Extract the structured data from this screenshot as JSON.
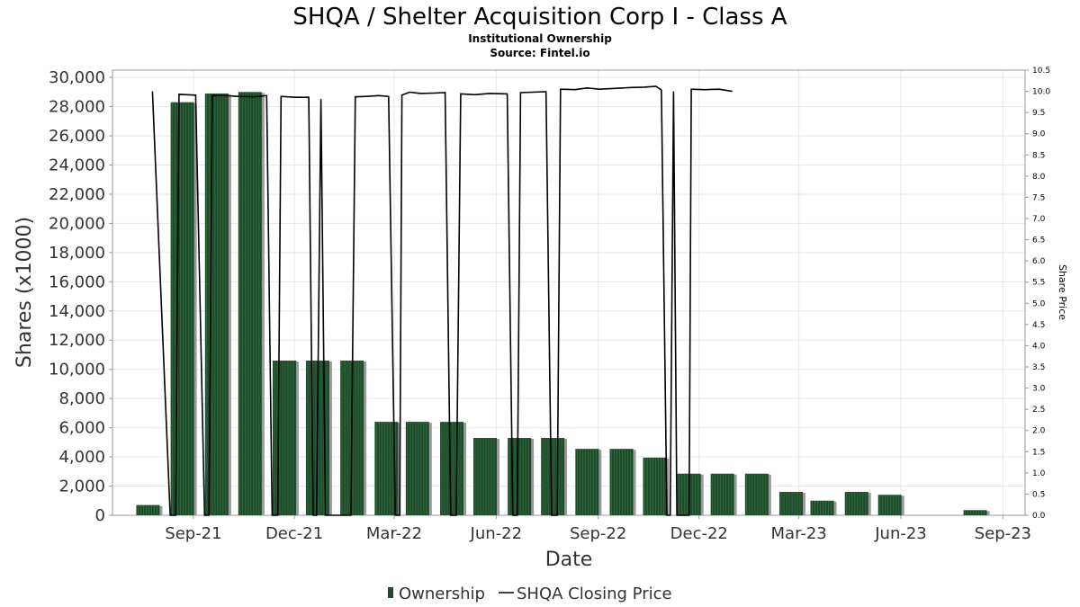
{
  "title": "SHQA / Shelter Acquisition Corp I - Class A",
  "subtitle": "Institutional Ownership",
  "source": "Source: Fintel.io",
  "colors": {
    "bar": "#1f4a2b",
    "bar_stripe": "#2e6b3c",
    "bar_shadow": "#9a9a9a",
    "line": "#000000",
    "grid": "#e6e6e6"
  },
  "chart_data": {
    "type": "bar",
    "title": "SHQA / Shelter Acquisition Corp I - Class A",
    "xlabel": "Date",
    "ylabel": "Shares (x1000)",
    "y2label": "Share Price",
    "ylim": [
      0,
      30500
    ],
    "y2lim": [
      0,
      10.5
    ],
    "xlim": [
      "2021-06-19",
      "2023-09-20"
    ],
    "grid": true,
    "legend_position": "bottom",
    "x_ticks": [
      {
        "date": "2021-08-31",
        "label": "Sep-21"
      },
      {
        "date": "2021-11-30",
        "label": "Dec-21"
      },
      {
        "date": "2022-02-28",
        "label": "Mar-22"
      },
      {
        "date": "2022-05-31",
        "label": "Jun-22"
      },
      {
        "date": "2022-08-31",
        "label": "Sep-22"
      },
      {
        "date": "2022-11-30",
        "label": "Dec-22"
      },
      {
        "date": "2023-02-28",
        "label": "Mar-23"
      },
      {
        "date": "2023-05-31",
        "label": "Jun-23"
      },
      {
        "date": "2023-08-31",
        "label": "Sep-23"
      }
    ],
    "y_ticks": [
      {
        "value": 0,
        "label": "0"
      },
      {
        "value": 2000,
        "label": "2,000"
      },
      {
        "value": 4000,
        "label": "4,000"
      },
      {
        "value": 6000,
        "label": "6,000"
      },
      {
        "value": 8000,
        "label": "8,000"
      },
      {
        "value": 10000,
        "label": "10,000"
      },
      {
        "value": 12000,
        "label": "12,000"
      },
      {
        "value": 14000,
        "label": "14,000"
      },
      {
        "value": 16000,
        "label": "16,000"
      },
      {
        "value": 18000,
        "label": "18,000"
      },
      {
        "value": 20000,
        "label": "20,000"
      },
      {
        "value": 22000,
        "label": "22,000"
      },
      {
        "value": 24000,
        "label": "24,000"
      },
      {
        "value": 26000,
        "label": "26,000"
      },
      {
        "value": 28000,
        "label": "28,000"
      },
      {
        "value": 30000,
        "label": "30,000"
      }
    ],
    "y2_ticks": [
      {
        "value": 0,
        "label": "0.0"
      },
      {
        "value": 0.5,
        "label": "0.5"
      },
      {
        "value": 1,
        "label": "1.0"
      },
      {
        "value": 1.5,
        "label": "1.5"
      },
      {
        "value": 2,
        "label": "2.0"
      },
      {
        "value": 2.5,
        "label": "2.5"
      },
      {
        "value": 3,
        "label": "3.0"
      },
      {
        "value": 3.5,
        "label": "3.5"
      },
      {
        "value": 4,
        "label": "4.0"
      },
      {
        "value": 4.5,
        "label": "4.5"
      },
      {
        "value": 5,
        "label": "5.0"
      },
      {
        "value": 5.5,
        "label": "5.5"
      },
      {
        "value": 6,
        "label": "6.0"
      },
      {
        "value": 6.5,
        "label": "6.5"
      },
      {
        "value": 7,
        "label": "7.0"
      },
      {
        "value": 7.5,
        "label": "7.5"
      },
      {
        "value": 8,
        "label": "8.0"
      },
      {
        "value": 8.5,
        "label": "8.5"
      },
      {
        "value": 9,
        "label": "9.0"
      },
      {
        "value": 9.5,
        "label": "9.5"
      },
      {
        "value": 10,
        "label": "10.0"
      },
      {
        "value": 10.5,
        "label": "10.5"
      }
    ],
    "series": [
      {
        "name": "Ownership",
        "type": "bar",
        "axis": "left",
        "points": [
          {
            "date": "2021-07-21",
            "value": 700
          },
          {
            "date": "2021-08-21",
            "value": 28300
          },
          {
            "date": "2021-09-21",
            "value": 28900
          },
          {
            "date": "2021-10-21",
            "value": 29000
          },
          {
            "date": "2021-11-21",
            "value": 10600
          },
          {
            "date": "2021-12-21",
            "value": 10600
          },
          {
            "date": "2022-01-21",
            "value": 10600
          },
          {
            "date": "2022-02-21",
            "value": 6400
          },
          {
            "date": "2022-03-21",
            "value": 6400
          },
          {
            "date": "2022-04-21",
            "value": 6400
          },
          {
            "date": "2022-05-21",
            "value": 5300
          },
          {
            "date": "2022-06-21",
            "value": 5300
          },
          {
            "date": "2022-07-21",
            "value": 5300
          },
          {
            "date": "2022-08-21",
            "value": 4550
          },
          {
            "date": "2022-09-21",
            "value": 4550
          },
          {
            "date": "2022-10-21",
            "value": 3950
          },
          {
            "date": "2022-11-21",
            "value": 2850
          },
          {
            "date": "2022-12-21",
            "value": 2850
          },
          {
            "date": "2023-01-21",
            "value": 2850
          },
          {
            "date": "2023-02-21",
            "value": 1600
          },
          {
            "date": "2023-03-21",
            "value": 1000
          },
          {
            "date": "2023-04-21",
            "value": 1600
          },
          {
            "date": "2023-05-21",
            "value": 1400
          },
          {
            "date": "2023-08-06",
            "value": 350
          }
        ]
      },
      {
        "name": "SHQA Closing Price",
        "type": "line",
        "axis": "right",
        "points": [
          {
            "date": "2021-07-25",
            "value": 10.0
          },
          {
            "date": "2021-08-10",
            "value": 0.0
          },
          {
            "date": "2021-08-15",
            "value": 0.0
          },
          {
            "date": "2021-08-18",
            "value": 9.93
          },
          {
            "date": "2021-08-25",
            "value": 9.92
          },
          {
            "date": "2021-09-02",
            "value": 9.91
          },
          {
            "date": "2021-09-10",
            "value": 0.0
          },
          {
            "date": "2021-09-14",
            "value": 0.0
          },
          {
            "date": "2021-09-17",
            "value": 9.9
          },
          {
            "date": "2021-09-28",
            "value": 9.9
          },
          {
            "date": "2021-10-10",
            "value": 9.88
          },
          {
            "date": "2021-10-25",
            "value": 9.87
          },
          {
            "date": "2021-11-05",
            "value": 9.9
          },
          {
            "date": "2021-11-10",
            "value": 0.0
          },
          {
            "date": "2021-11-15",
            "value": 0.0
          },
          {
            "date": "2021-11-18",
            "value": 9.88
          },
          {
            "date": "2021-12-01",
            "value": 9.86
          },
          {
            "date": "2021-12-13",
            "value": 9.86
          },
          {
            "date": "2021-12-17",
            "value": 0.0
          },
          {
            "date": "2021-12-20",
            "value": 0.0
          },
          {
            "date": "2021-12-24",
            "value": 9.82
          },
          {
            "date": "2021-12-28",
            "value": 0.0
          },
          {
            "date": "2022-01-20",
            "value": 0.0
          },
          {
            "date": "2022-01-24",
            "value": 9.87
          },
          {
            "date": "2022-02-03",
            "value": 9.88
          },
          {
            "date": "2022-02-14",
            "value": 9.9
          },
          {
            "date": "2022-02-23",
            "value": 9.88
          },
          {
            "date": "2022-03-01",
            "value": 0.0
          },
          {
            "date": "2022-03-05",
            "value": 0.0
          },
          {
            "date": "2022-03-07",
            "value": 9.91
          },
          {
            "date": "2022-03-14",
            "value": 9.98
          },
          {
            "date": "2022-03-24",
            "value": 9.95
          },
          {
            "date": "2022-04-05",
            "value": 9.96
          },
          {
            "date": "2022-04-15",
            "value": 9.97
          },
          {
            "date": "2022-04-20",
            "value": 0.0
          },
          {
            "date": "2022-04-25",
            "value": 0.0
          },
          {
            "date": "2022-04-29",
            "value": 9.94
          },
          {
            "date": "2022-05-12",
            "value": 9.92
          },
          {
            "date": "2022-05-25",
            "value": 9.95
          },
          {
            "date": "2022-06-10",
            "value": 9.94
          },
          {
            "date": "2022-06-15",
            "value": 0.0
          },
          {
            "date": "2022-06-19",
            "value": 0.0
          },
          {
            "date": "2022-06-22",
            "value": 9.97
          },
          {
            "date": "2022-07-03",
            "value": 9.98
          },
          {
            "date": "2022-07-15",
            "value": 9.99
          },
          {
            "date": "2022-07-20",
            "value": 0.0
          },
          {
            "date": "2022-07-25",
            "value": 0.0
          },
          {
            "date": "2022-07-28",
            "value": 10.05
          },
          {
            "date": "2022-08-10",
            "value": 10.04
          },
          {
            "date": "2022-08-21",
            "value": 10.08
          },
          {
            "date": "2022-09-01",
            "value": 10.05
          },
          {
            "date": "2022-09-15",
            "value": 10.07
          },
          {
            "date": "2022-09-30",
            "value": 10.09
          },
          {
            "date": "2022-10-12",
            "value": 10.1
          },
          {
            "date": "2022-10-22",
            "value": 10.12
          },
          {
            "date": "2022-10-27",
            "value": 10.03
          },
          {
            "date": "2022-11-01",
            "value": 0.0
          },
          {
            "date": "2022-11-04",
            "value": 0.0
          },
          {
            "date": "2022-11-07",
            "value": 10.0
          },
          {
            "date": "2022-11-10",
            "value": 0.0
          },
          {
            "date": "2022-11-21",
            "value": 0.0
          },
          {
            "date": "2022-11-23",
            "value": 10.05
          },
          {
            "date": "2022-12-05",
            "value": 10.04
          },
          {
            "date": "2022-12-18",
            "value": 10.05
          },
          {
            "date": "2022-12-30",
            "value": 10.0
          }
        ]
      }
    ]
  }
}
